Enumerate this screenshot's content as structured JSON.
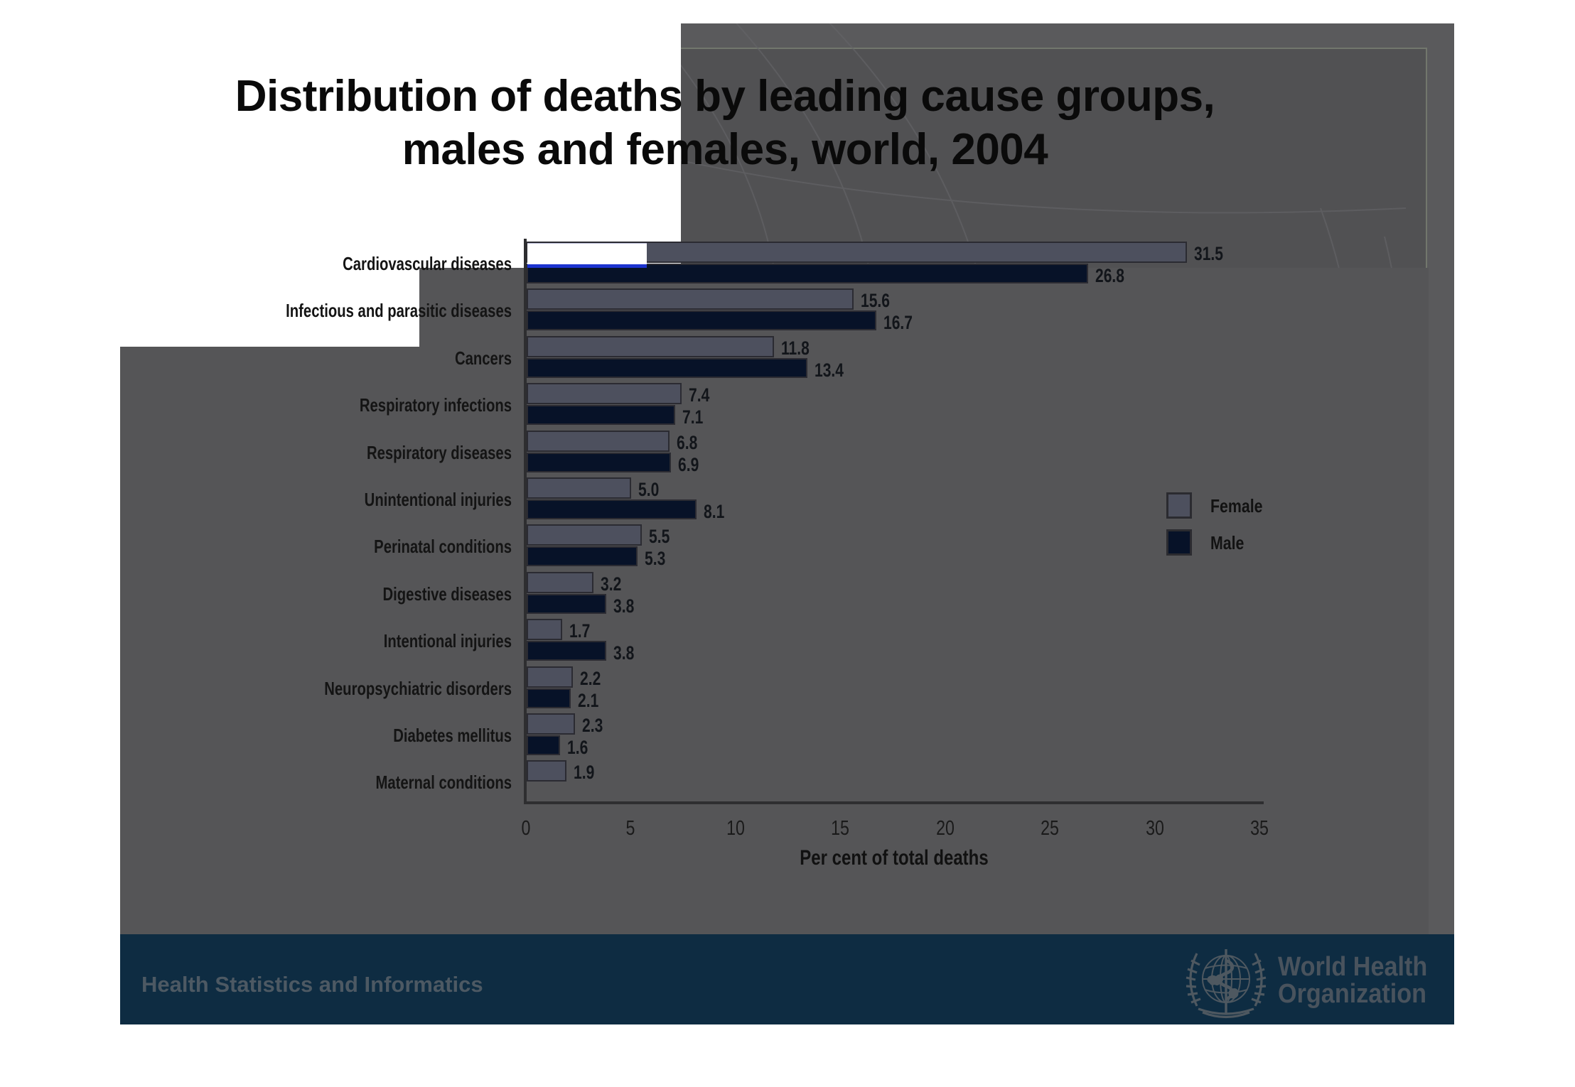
{
  "slide": {
    "title_line1": "Distribution of deaths by leading cause groups,",
    "title_line2": "males and females, world, 2004"
  },
  "chart_data": {
    "type": "bar",
    "orientation": "horizontal",
    "title": "Distribution of deaths by leading cause groups, males and females, world, 2004",
    "xlabel": "Per cent of total deaths",
    "xlim": [
      0,
      35
    ],
    "x_ticks": [
      0,
      5,
      10,
      15,
      20,
      25,
      30,
      35
    ],
    "grid": false,
    "legend_position": "right",
    "value_labels": true,
    "categories": [
      "Cardiovascular diseases",
      "Infectious and parasitic diseases",
      "Cancers",
      "Respiratory infections",
      "Respiratory diseases",
      "Unintentional injuries",
      "Perinatal conditions",
      "Digestive diseases",
      "Intentional injuries",
      "Neuropsychiatric disorders",
      "Diabetes mellitus",
      "Maternal conditions"
    ],
    "series": [
      {
        "name": "Female",
        "color": "#4d505e",
        "values": [
          31.5,
          15.6,
          11.8,
          7.4,
          6.8,
          5.0,
          5.5,
          3.2,
          1.7,
          2.2,
          2.3,
          1.9
        ]
      },
      {
        "name": "Male",
        "color": "#071228",
        "values": [
          26.8,
          16.7,
          13.4,
          7.1,
          6.9,
          8.1,
          5.3,
          3.8,
          3.8,
          2.1,
          1.6,
          null
        ]
      }
    ]
  },
  "footer": {
    "left_text": "Health Statistics and Informatics",
    "logo_line1": "World Health",
    "logo_line2": "Organization"
  },
  "colors": {
    "panel_gray": "#555557",
    "panel_gray_outer": "#5a5a5c",
    "footer_navy": "#0e2c42",
    "female_bar": "#4d505e",
    "male_bar": "#071228",
    "artifact_blue": "#1c33cf",
    "footer_text_gray": "#4d5963"
  }
}
